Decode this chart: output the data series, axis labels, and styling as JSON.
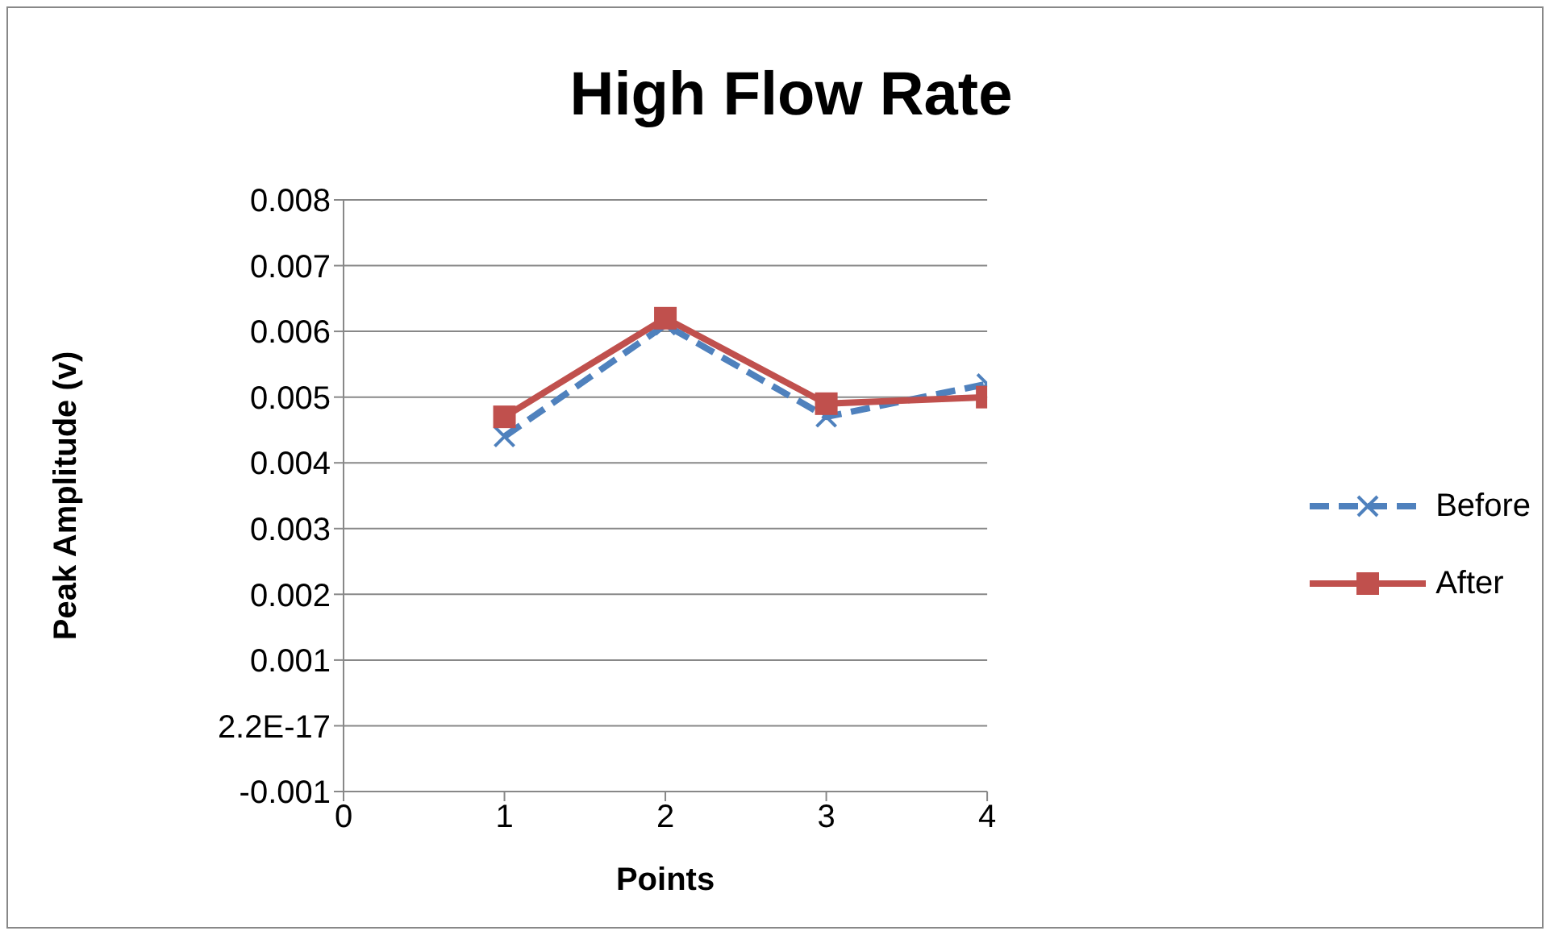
{
  "chart_data": {
    "type": "line",
    "title": "High Flow Rate",
    "xlabel": "Points",
    "ylabel": "Peak Amplitude (v)",
    "x": [
      1,
      2,
      3,
      4
    ],
    "series": [
      {
        "name": "Before",
        "color": "#4f81bd",
        "values": [
          0.0044,
          0.0061,
          0.0047,
          0.0052
        ],
        "marker": "cross",
        "line_style": "dashed"
      },
      {
        "name": "After",
        "color": "#c0504d",
        "values": [
          0.0047,
          0.0062,
          0.0049,
          0.005
        ],
        "marker": "square",
        "line_style": "solid"
      }
    ],
    "xlim": [
      0,
      4
    ],
    "xticks": [
      0,
      1,
      2,
      3,
      4
    ],
    "ylim": [
      -0.001,
      0.008
    ],
    "yticks": [
      -0.001,
      {
        "value": 0,
        "label": "2.2E-17"
      },
      0.001,
      0.002,
      0.003,
      0.004,
      0.005,
      0.006,
      0.007,
      0.008
    ],
    "grid": "y",
    "legend": "right"
  }
}
